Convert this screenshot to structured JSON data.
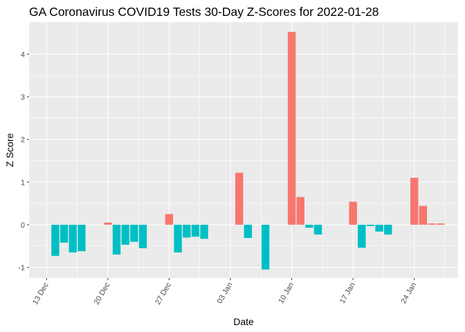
{
  "chart_data": {
    "type": "bar",
    "title": "GA Coronavirus COVID19 Tests 30-Day Z-Scores for 2022-01-28",
    "xlabel": "Date",
    "ylabel": "Z Score",
    "x_tick_labels": [
      "13 Dec",
      "20 Dec",
      "27 Dec",
      "03 Jan",
      "10 Jan",
      "17 Jan",
      "24 Jan"
    ],
    "y_tick_labels": [
      "-1",
      "0",
      "1",
      "2",
      "3",
      "4"
    ],
    "y_ticks": [
      -1,
      0,
      1,
      2,
      3,
      4
    ],
    "ylim": [
      -1.25,
      4.75
    ],
    "xlim": [
      "2021-12-11",
      "2022-01-29"
    ],
    "grid": true,
    "legend": "none",
    "colors": {
      "positive": "#F8766D",
      "negative": "#00BFC4",
      "panel": "#EBEBEB",
      "grid": "#FFFFFF"
    },
    "points": [
      {
        "date": "2021-12-14",
        "value": -0.73
      },
      {
        "date": "2021-12-15",
        "value": -0.42
      },
      {
        "date": "2021-12-16",
        "value": -0.65
      },
      {
        "date": "2021-12-17",
        "value": -0.62
      },
      {
        "date": "2021-12-20",
        "value": 0.05
      },
      {
        "date": "2021-12-21",
        "value": -0.7
      },
      {
        "date": "2021-12-22",
        "value": -0.47
      },
      {
        "date": "2021-12-23",
        "value": -0.4
      },
      {
        "date": "2021-12-24",
        "value": -0.55
      },
      {
        "date": "2021-12-27",
        "value": 0.25
      },
      {
        "date": "2021-12-28",
        "value": -0.65
      },
      {
        "date": "2021-12-29",
        "value": -0.3
      },
      {
        "date": "2021-12-30",
        "value": -0.28
      },
      {
        "date": "2021-12-31",
        "value": -0.33
      },
      {
        "date": "2022-01-04",
        "value": 1.22
      },
      {
        "date": "2022-01-05",
        "value": -0.31
      },
      {
        "date": "2022-01-07",
        "value": -1.05
      },
      {
        "date": "2022-01-10",
        "value": 4.52
      },
      {
        "date": "2022-01-11",
        "value": 0.65
      },
      {
        "date": "2022-01-12",
        "value": -0.07
      },
      {
        "date": "2022-01-13",
        "value": -0.23
      },
      {
        "date": "2022-01-17",
        "value": 0.54
      },
      {
        "date": "2022-01-18",
        "value": -0.54
      },
      {
        "date": "2022-01-19",
        "value": -0.03
      },
      {
        "date": "2022-01-20",
        "value": -0.16
      },
      {
        "date": "2022-01-21",
        "value": -0.23
      },
      {
        "date": "2022-01-24",
        "value": 1.1
      },
      {
        "date": "2022-01-25",
        "value": 0.44
      },
      {
        "date": "2022-01-26",
        "value": 0.03
      },
      {
        "date": "2022-01-27",
        "value": 0.03
      }
    ]
  }
}
